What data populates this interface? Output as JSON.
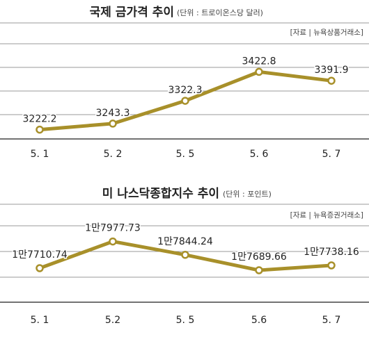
{
  "chart_data": [
    {
      "type": "line",
      "title": "국제 금가격 추이",
      "unit": "(단위 : 트로이온스당 달러)",
      "source": "[자료 | 뉴욕상품거래소]",
      "categories": [
        "5. 1",
        "5. 2",
        "5. 5",
        "5. 6",
        "5. 7"
      ],
      "values": [
        3222.2,
        3243.3,
        3322.3,
        3422.8,
        3391.9
      ],
      "labels": [
        "3222.2",
        "3243.3",
        "3322.3",
        "3422.8",
        "3391.9"
      ],
      "ylim": [
        3190,
        3520
      ],
      "grid": true,
      "color": "#a8902a"
    },
    {
      "type": "line",
      "title": "미 나스닥종합지수 추이",
      "unit": "(단위 : 포인트)",
      "source": "[자료 | 뉴욕증권거래소]",
      "categories": [
        "5. 1",
        "5.2",
        "5. 5",
        "5.6",
        "5. 7"
      ],
      "values": [
        17710.74,
        17977.73,
        17844.24,
        17689.66,
        17738.16
      ],
      "labels": [
        "1만7710.74",
        "1만7977.73",
        "1만7844.24",
        "1만7689.66",
        "1만7738.16"
      ],
      "ylim": [
        17370,
        18350
      ],
      "grid": true,
      "color": "#a8902a"
    }
  ]
}
